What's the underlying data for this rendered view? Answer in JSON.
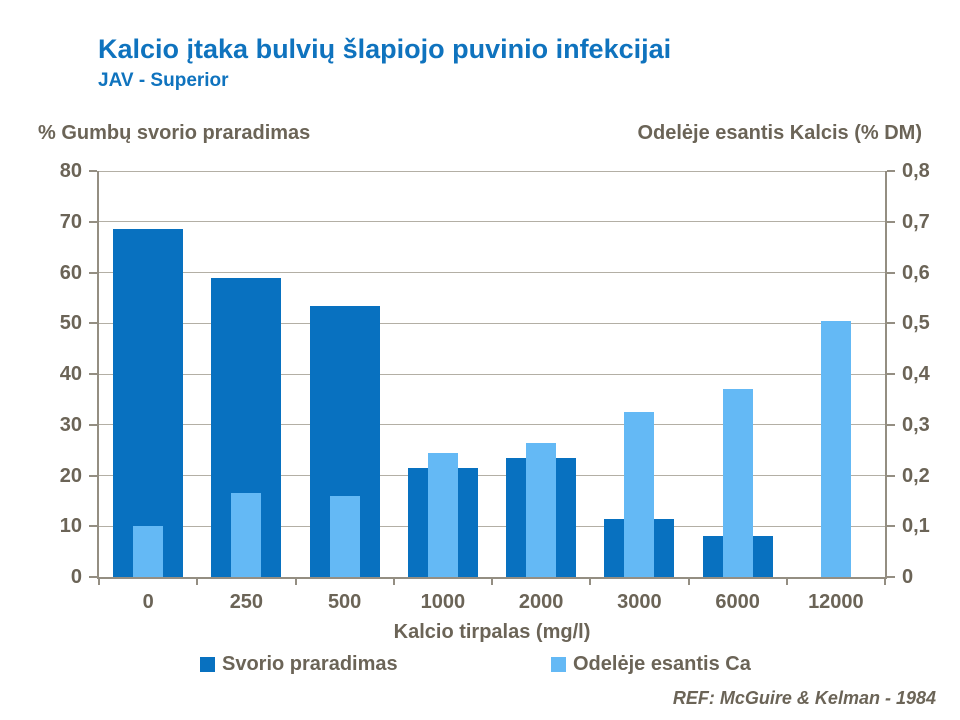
{
  "header": {
    "title": "Kalcio įtaka bulvių šlapiojo puvinio infekcijai",
    "subtitle": "JAV - Superior"
  },
  "footer": {
    "ref": "REF: McGuire & Kelman - 1984"
  },
  "colors": {
    "title_blue": "#0f73be",
    "dark_bar": "#0871c0",
    "light_bar": "#64b9f5",
    "text_gray": "#6b6457",
    "axis_line": "#948e82",
    "gridline": "#b3afa5"
  },
  "chart_data": {
    "type": "bar",
    "title": "Kalcio įtaka bulvių šlapiojo puvinio infekcijai (JAV - Superior)",
    "categories": [
      "0",
      "250",
      "500",
      "1000",
      "2000",
      "3000",
      "6000",
      "12000"
    ],
    "series": [
      {
        "name": "Svorio praradimas",
        "axis": "left",
        "color": "#0871c0",
        "values": [
          68.5,
          59,
          53.5,
          21.5,
          23.5,
          11.5,
          8,
          0
        ]
      },
      {
        "name": "Odelėje esantis Ca",
        "axis": "right",
        "color": "#64b9f5",
        "values": [
          0.1,
          0.165,
          0.16,
          0.245,
          0.265,
          0.325,
          0.37,
          0.505
        ]
      }
    ],
    "xlabel": "Kalcio tirpalas (mg/l)",
    "left_axis": {
      "label": "%  Gumbų svorio praradimas",
      "min": 0,
      "max": 80,
      "step": 10,
      "tick_labels": [
        "0",
        "10",
        "20",
        "30",
        "40",
        "50",
        "60",
        "70",
        "80"
      ]
    },
    "right_axis": {
      "label": "Odelėje esantis Kalcis  (% DM)",
      "min": 0,
      "max": 0.8,
      "step": 0.1,
      "tick_labels": [
        "0",
        "0,1",
        "0,2",
        "0,3",
        "0,4",
        "0,5",
        "0,6",
        "0,7",
        "0,8"
      ]
    },
    "grid": true,
    "legend_position": "bottom"
  }
}
